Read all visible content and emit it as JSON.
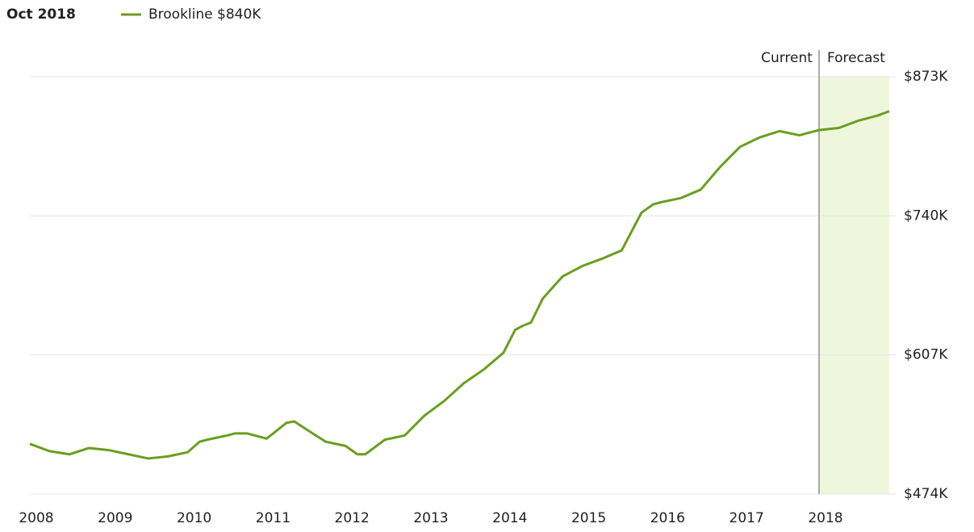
{
  "chart_data": {
    "type": "line",
    "title": "Oct 2018",
    "annotations": {
      "current": "Current",
      "forecast": "Forecast"
    },
    "forecast_start": 2018,
    "x": [
      2008.0,
      2008.25,
      2008.5,
      2008.75,
      2009.0,
      2009.25,
      2009.5,
      2009.75,
      2010.0,
      2010.15,
      2010.25,
      2010.5,
      2010.6,
      2010.75,
      2011.0,
      2011.25,
      2011.35,
      2011.5,
      2011.75,
      2012.0,
      2012.15,
      2012.25,
      2012.5,
      2012.75,
      2013.0,
      2013.25,
      2013.5,
      2013.75,
      2014.0,
      2014.15,
      2014.25,
      2014.35,
      2014.5,
      2014.75,
      2015.0,
      2015.25,
      2015.5,
      2015.75,
      2015.9,
      2016.0,
      2016.25,
      2016.5,
      2016.75,
      2017.0,
      2017.25,
      2017.5,
      2017.75,
      2018.0,
      2018.25,
      2018.5,
      2018.75,
      2018.89
    ],
    "series": [
      {
        "name": "Brookline $840K",
        "color": "#6a9e1f",
        "values": [
          522000,
          515000,
          512000,
          518000,
          516000,
          512000,
          508000,
          510000,
          514000,
          524000,
          526000,
          530000,
          532000,
          532000,
          527000,
          542000,
          543500,
          536000,
          524000,
          520000,
          512000,
          512000,
          526000,
          530000,
          549000,
          563000,
          580000,
          593000,
          609000,
          631000,
          635000,
          638000,
          661000,
          682000,
          692000,
          699000,
          707000,
          743000,
          751000,
          753000,
          757000,
          765000,
          787000,
          806000,
          815000,
          821000,
          817000,
          822000,
          824000,
          831000,
          836000,
          840000
        ]
      }
    ],
    "xlim": [
      2008,
      2018.89
    ],
    "xticks": [
      2008,
      2009,
      2010,
      2011,
      2012,
      2013,
      2014,
      2015,
      2016,
      2017,
      2018
    ],
    "ylim": [
      474000,
      873000
    ],
    "yticks": [
      {
        "value": 474000,
        "label": "$474K"
      },
      {
        "value": 607000,
        "label": "$607K"
      },
      {
        "value": 740000,
        "label": "$740K"
      },
      {
        "value": 873000,
        "label": "$873K"
      }
    ],
    "grid": true
  }
}
